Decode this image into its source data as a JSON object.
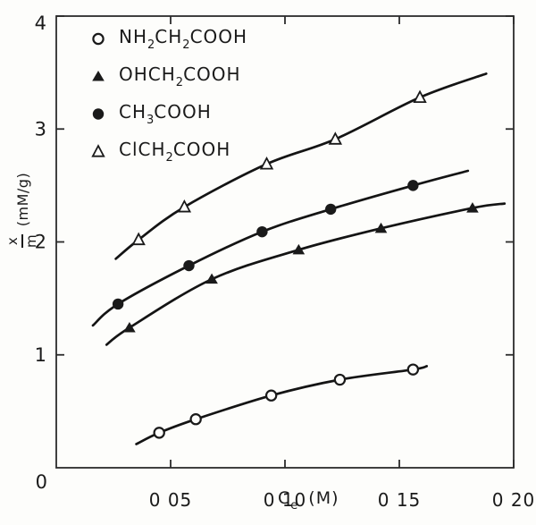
{
  "figure": {
    "background": "#fdfdfb",
    "ink": "#1a1a1a",
    "axis_color": "#2b2b2b",
    "curve_color": "#141414"
  },
  "chart_data": {
    "type": "scatter",
    "title": "",
    "xlabel": {
      "base": "C",
      "sub": "e",
      "unit": "(M)"
    },
    "ylabel": {
      "numerator": "x",
      "denominator": "m",
      "unit": "(mM/g)"
    },
    "xlim": [
      0,
      0.2
    ],
    "ylim": [
      0,
      4
    ],
    "x_ticks": [
      {
        "value": 0.05,
        "label": "0 05"
      },
      {
        "value": 0.1,
        "label": "0 10"
      },
      {
        "value": 0.15,
        "label": "0 15"
      },
      {
        "value": 0.2,
        "label": "0 20"
      }
    ],
    "y_ticks": [
      {
        "value": 1,
        "label": "1"
      },
      {
        "value": 2,
        "label": "2"
      },
      {
        "value": 3,
        "label": "3"
      },
      {
        "value": 4,
        "label": "4"
      }
    ],
    "origin_label": "0",
    "grid": false,
    "legend_position": "top-left",
    "series": [
      {
        "name": "NH2CH2COOH",
        "formula": [
          {
            "t": "NH"
          },
          {
            "t": "2",
            "s": true
          },
          {
            "t": "CH"
          },
          {
            "t": "2",
            "s": true
          },
          {
            "t": "COOH"
          }
        ],
        "marker": "circle-open",
        "x": [
          0.045,
          0.061,
          0.094,
          0.124,
          0.156
        ],
        "y": [
          0.31,
          0.43,
          0.64,
          0.78,
          0.87
        ],
        "curve_start": {
          "x": 0.035,
          "y": 0.21
        },
        "curve_end": {
          "x": 0.162,
          "y": 0.9
        }
      },
      {
        "name": "OHCH2COOH",
        "formula": [
          {
            "t": "OHCH"
          },
          {
            "t": "2",
            "s": true
          },
          {
            "t": "COOH"
          }
        ],
        "marker": "triangle-filled",
        "x": [
          0.032,
          0.068,
          0.106,
          0.142,
          0.182
        ],
        "y": [
          1.24,
          1.67,
          1.93,
          2.12,
          2.3
        ],
        "curve_start": {
          "x": 0.022,
          "y": 1.09
        },
        "curve_end": {
          "x": 0.196,
          "y": 2.34
        }
      },
      {
        "name": "CH3COOH",
        "formula": [
          {
            "t": "CH"
          },
          {
            "t": "3",
            "s": true
          },
          {
            "t": "COOH"
          }
        ],
        "marker": "circle-filled",
        "x": [
          0.027,
          0.058,
          0.09,
          0.12,
          0.156
        ],
        "y": [
          1.45,
          1.79,
          2.09,
          2.29,
          2.5
        ],
        "curve_start": {
          "x": 0.016,
          "y": 1.26
        },
        "curve_end": {
          "x": 0.18,
          "y": 2.63
        }
      },
      {
        "name": "ClCH2COOH",
        "formula": [
          {
            "t": "ClCH"
          },
          {
            "t": "2",
            "s": true
          },
          {
            "t": "COOH"
          }
        ],
        "marker": "triangle-open",
        "x": [
          0.036,
          0.056,
          0.092,
          0.122,
          0.159
        ],
        "y": [
          2.02,
          2.31,
          2.69,
          2.91,
          3.28
        ],
        "curve_start": {
          "x": 0.026,
          "y": 1.85
        },
        "curve_end": {
          "x": 0.188,
          "y": 3.49
        }
      }
    ]
  }
}
